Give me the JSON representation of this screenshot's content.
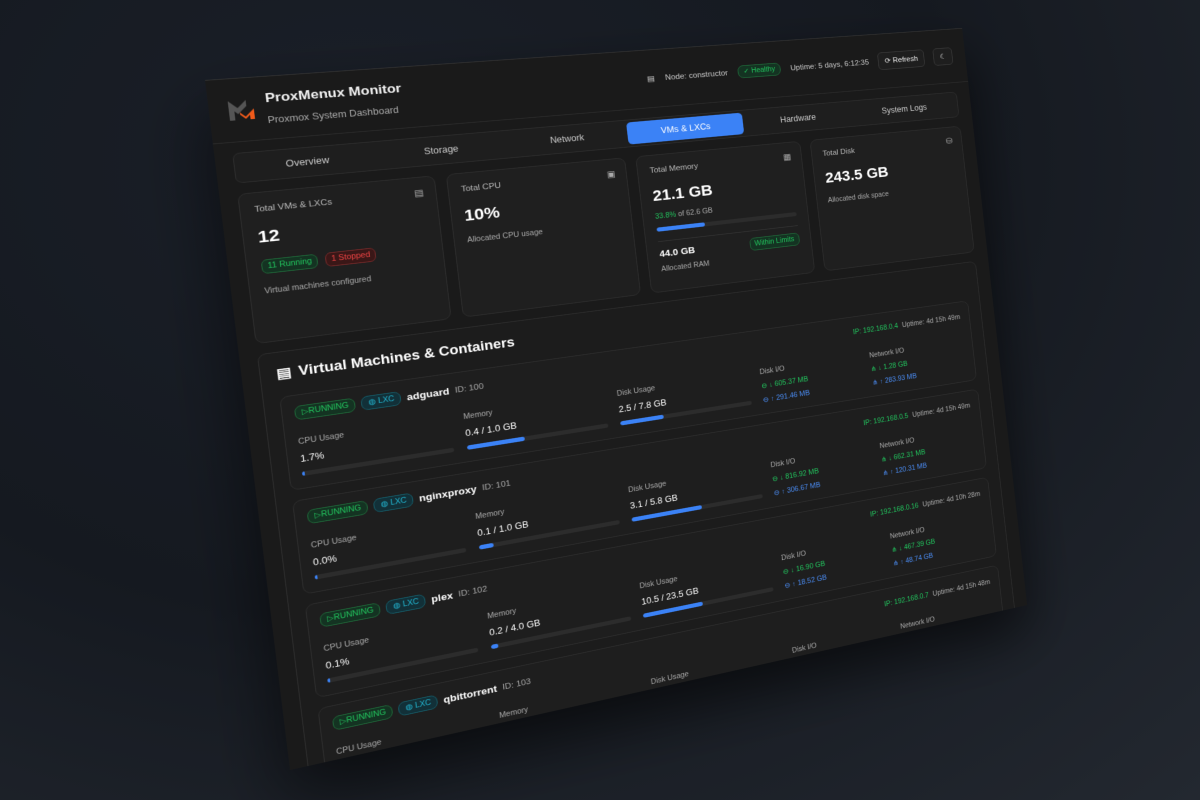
{
  "header": {
    "title": "ProxMenux Monitor",
    "subtitle": "Proxmox System Dashboard",
    "node": "Node: constructor",
    "health": "Healthy",
    "uptime": "Uptime: 5 days, 6:12:35",
    "refresh": "Refresh",
    "icons": {
      "node": "server-icon",
      "health": "check-circle-icon",
      "refresh": "refresh-icon",
      "theme": "moon-icon"
    }
  },
  "tabs": [
    {
      "label": "Overview"
    },
    {
      "label": "Storage"
    },
    {
      "label": "Network"
    },
    {
      "label": "VMs & LXCs",
      "active": true
    },
    {
      "label": "Hardware"
    },
    {
      "label": "System Logs"
    }
  ],
  "stats": {
    "vms": {
      "label": "Total VMs & LXCs",
      "value": "12",
      "running": "11 Running",
      "stopped": "1 Stopped",
      "note": "Virtual machines configured"
    },
    "cpu": {
      "label": "Total CPU",
      "value": "10%",
      "note": "Allocated CPU usage"
    },
    "memory": {
      "label": "Total Memory",
      "value": "21.1 GB",
      "pct": "33.8%",
      "of": " of 62.6 GB",
      "fraction": 0.338,
      "allocated": "44.0 GB",
      "allocated_label": "Allocated RAM",
      "status": "Within Limits"
    },
    "disk": {
      "label": "Total Disk",
      "value": "243.5 GB",
      "note": "Allocated disk space"
    }
  },
  "section_title": "Virtual Machines & Containers",
  "labels": {
    "cpu": "CPU Usage",
    "memory": "Memory",
    "disk": "Disk Usage",
    "disk_io": "Disk I/O",
    "net_io": "Network I/O"
  },
  "vms": [
    {
      "status": "RUNNING",
      "type": "LXC",
      "name": "adguard",
      "id": "ID: 100",
      "ip": "IP: 192.168.0.4",
      "uptime": "Uptime: 4d 15h 49m",
      "cpu": "1.7%",
      "cpu_f": 0.017,
      "mem": "0.4 / 1.0 GB",
      "mem_f": 0.4,
      "disk": "2.5 / 7.8 GB",
      "disk_f": 0.32,
      "dio_r": "↓ 605.37 MB",
      "dio_w": "↑ 291.46 MB",
      "net_in": "↓ 1.28 GB",
      "net_out": "↑ 283.93 MB"
    },
    {
      "status": "RUNNING",
      "type": "LXC",
      "name": "nginxproxy",
      "id": "ID: 101",
      "ip": "IP: 192.168.0.5",
      "uptime": "Uptime: 4d 15h 49m",
      "cpu": "0.0%",
      "cpu_f": 0,
      "mem": "0.1 / 1.0 GB",
      "mem_f": 0.1,
      "disk": "3.1 / 5.8 GB",
      "disk_f": 0.53,
      "dio_r": "↓ 816.92 MB",
      "dio_w": "↑ 306.67 MB",
      "net_in": "↓ 662.31 MB",
      "net_out": "↑ 120.31 MB"
    },
    {
      "status": "RUNNING",
      "type": "LXC",
      "name": "plex",
      "id": "ID: 102",
      "ip": "IP: 192.168.0.16",
      "uptime": "Uptime: 4d 10h 28m",
      "cpu": "0.1%",
      "cpu_f": 0.001,
      "mem": "0.2 / 4.0 GB",
      "mem_f": 0.05,
      "disk": "10.5 / 23.5 GB",
      "disk_f": 0.45,
      "dio_r": "↓ 16.90 GB",
      "dio_w": "↑ 18.52 GB",
      "net_in": "↓ 467.39 GB",
      "net_out": "↑ 48.74 GB"
    },
    {
      "status": "RUNNING",
      "type": "LXC",
      "name": "qbittorrent",
      "id": "ID: 103",
      "ip": "IP: 192.168.0.7",
      "uptime": "Uptime: 4d 15h 48m"
    }
  ],
  "colors": {
    "accent": "#3b82f6",
    "success": "#22c55e",
    "danger": "#ef4444",
    "lxc": "#22b8d4",
    "logo_orange": "#f05a1a"
  }
}
